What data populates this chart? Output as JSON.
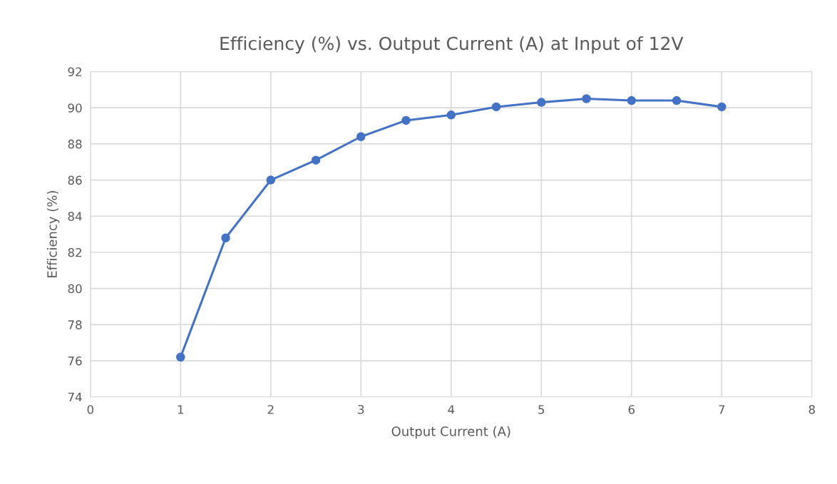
{
  "chart_data": {
    "type": "line",
    "title": "Efficiency (%) vs. Output Current (A) at Input of 12V",
    "xlabel": "Output Current (A)",
    "ylabel": "Efficiency (%)",
    "x": [
      1,
      1.5,
      2,
      2.5,
      3,
      3.5,
      4,
      4.5,
      5,
      5.5,
      6,
      6.5,
      7
    ],
    "series": [
      {
        "color": "#4472c4",
        "values": [
          76.2,
          82.8,
          86.0,
          87.1,
          88.4,
          89.3,
          89.6,
          90.05,
          90.3,
          90.5,
          90.4,
          90.4,
          90.05
        ]
      }
    ],
    "xlim": [
      0,
      8
    ],
    "xticks": [
      0,
      1,
      2,
      3,
      4,
      5,
      6,
      7,
      8
    ],
    "ylim": [
      74,
      92
    ],
    "yticks": [
      74,
      76,
      78,
      80,
      82,
      84,
      86,
      88,
      90,
      92
    ],
    "grid": true,
    "marker": "circle",
    "line_style": "solid"
  }
}
